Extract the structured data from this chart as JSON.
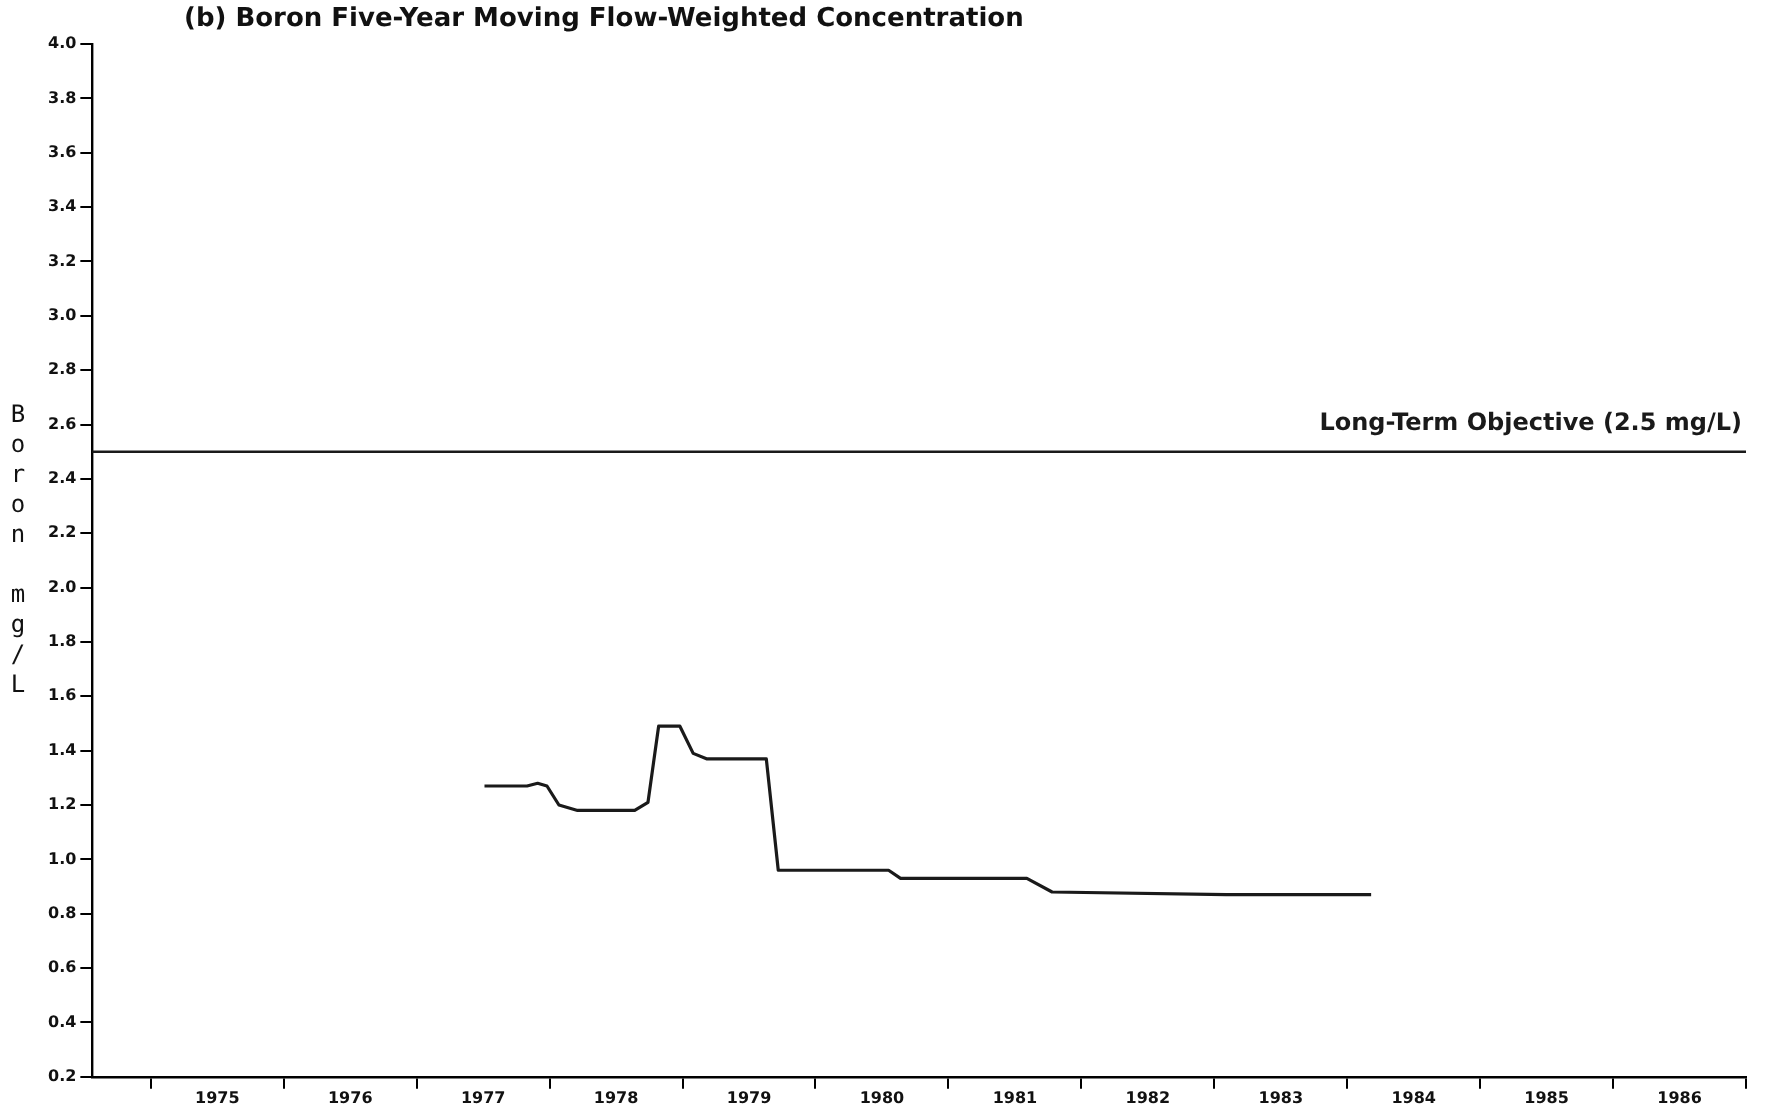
{
  "chart_data": {
    "type": "line",
    "title": "(b) Boron Five-Year Moving Flow-Weighted Concentration",
    "ylabel": "Boron mg/L",
    "x": [
      1977.51,
      1977.83,
      1977.91,
      1977.98,
      1978.07,
      1978.21,
      1978.64,
      1978.74,
      1978.82,
      1978.98,
      1979.08,
      1979.18,
      1979.63,
      1979.72,
      1980.12,
      1980.55,
      1980.64,
      1981.59,
      1981.78,
      1983.09,
      1984.18
    ],
    "series": [
      {
        "color": "#1a1a1a",
        "values": [
          1.27,
          1.27,
          1.28,
          1.27,
          1.2,
          1.18,
          1.18,
          1.21,
          1.49,
          1.49,
          1.39,
          1.37,
          1.37,
          0.96,
          0.96,
          0.96,
          0.93,
          0.93,
          0.88,
          0.87,
          0.87
        ]
      }
    ],
    "xlim": [
      1974.56,
      1987
    ],
    "xticks": [
      {
        "value": 1975,
        "label": null
      },
      {
        "value": 1975.5,
        "label": "1975"
      },
      {
        "value": 1976,
        "label": null
      },
      {
        "value": 1976.5,
        "label": "1976"
      },
      {
        "value": 1977,
        "label": null
      },
      {
        "value": 1977.5,
        "label": "1977"
      },
      {
        "value": 1978,
        "label": null
      },
      {
        "value": 1978.5,
        "label": "1978"
      },
      {
        "value": 1979,
        "label": null
      },
      {
        "value": 1979.5,
        "label": "1979"
      },
      {
        "value": 1980,
        "label": null
      },
      {
        "value": 1980.5,
        "label": "1980"
      },
      {
        "value": 1981,
        "label": null
      },
      {
        "value": 1981.5,
        "label": "1981"
      },
      {
        "value": 1982,
        "label": null
      },
      {
        "value": 1982.5,
        "label": "1982"
      },
      {
        "value": 1983,
        "label": null
      },
      {
        "value": 1983.5,
        "label": "1983"
      },
      {
        "value": 1984,
        "label": null
      },
      {
        "value": 1984.5,
        "label": "1984"
      },
      {
        "value": 1985,
        "label": null
      },
      {
        "value": 1985.5,
        "label": "1985"
      },
      {
        "value": 1986,
        "label": null
      },
      {
        "value": 1986.5,
        "label": "1986"
      },
      {
        "value": 1987,
        "label": null
      }
    ],
    "ylim": [
      0.2,
      4.0
    ],
    "yticks": [
      {
        "value": 0.2,
        "label": "0.2"
      },
      {
        "value": 0.4,
        "label": "0.4"
      },
      {
        "value": 0.6,
        "label": "0.6"
      },
      {
        "value": 0.8,
        "label": "0.8"
      },
      {
        "value": 1.0,
        "label": "1.0"
      },
      {
        "value": 1.2,
        "label": "1.2"
      },
      {
        "value": 1.4,
        "label": "1.4"
      },
      {
        "value": 1.6,
        "label": "1.6"
      },
      {
        "value": 1.8,
        "label": "1.8"
      },
      {
        "value": 2.0,
        "label": "2.0"
      },
      {
        "value": 2.2,
        "label": "2.2"
      },
      {
        "value": 2.4,
        "label": "2.4"
      },
      {
        "value": 2.6,
        "label": "2.6"
      },
      {
        "value": 2.8,
        "label": "2.8"
      },
      {
        "value": 3.0,
        "label": "3.0"
      },
      {
        "value": 3.2,
        "label": "3.2"
      },
      {
        "value": 3.4,
        "label": "3.4"
      },
      {
        "value": 3.6,
        "label": "3.6"
      },
      {
        "value": 3.8,
        "label": "3.8"
      },
      {
        "value": 4.0,
        "label": "4.0"
      }
    ],
    "ref_lines": [
      {
        "axis": "y",
        "value": 2.5,
        "label": "Long-Term Objective (2.5 mg/L)",
        "color": "#1a1a1a"
      }
    ],
    "grid": false,
    "legend": false,
    "marker": "none",
    "line_style": "solid"
  }
}
